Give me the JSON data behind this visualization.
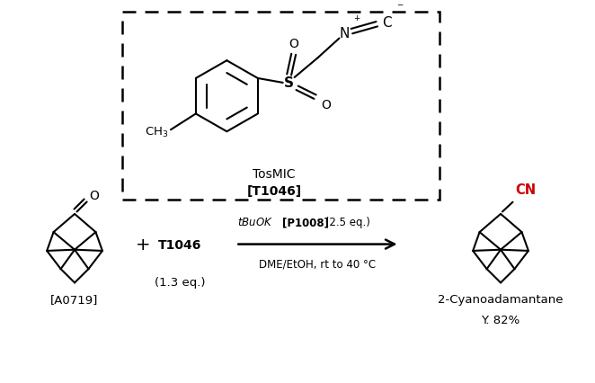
{
  "background_color": "#ffffff",
  "black": "#000000",
  "cn_color": "#cc0000",
  "label_A0719": "[A0719]",
  "label_T1046_bold": "T1046",
  "label_eq": "(1.3 eq.)",
  "label_product": "2-Cyanoadamantane",
  "label_yield": "Y. 82%",
  "label_TosMIC": "TosMIC",
  "label_T1046_box": "[T1046]",
  "reagent_line2": "DME/EtOH, rt to 40 °C"
}
